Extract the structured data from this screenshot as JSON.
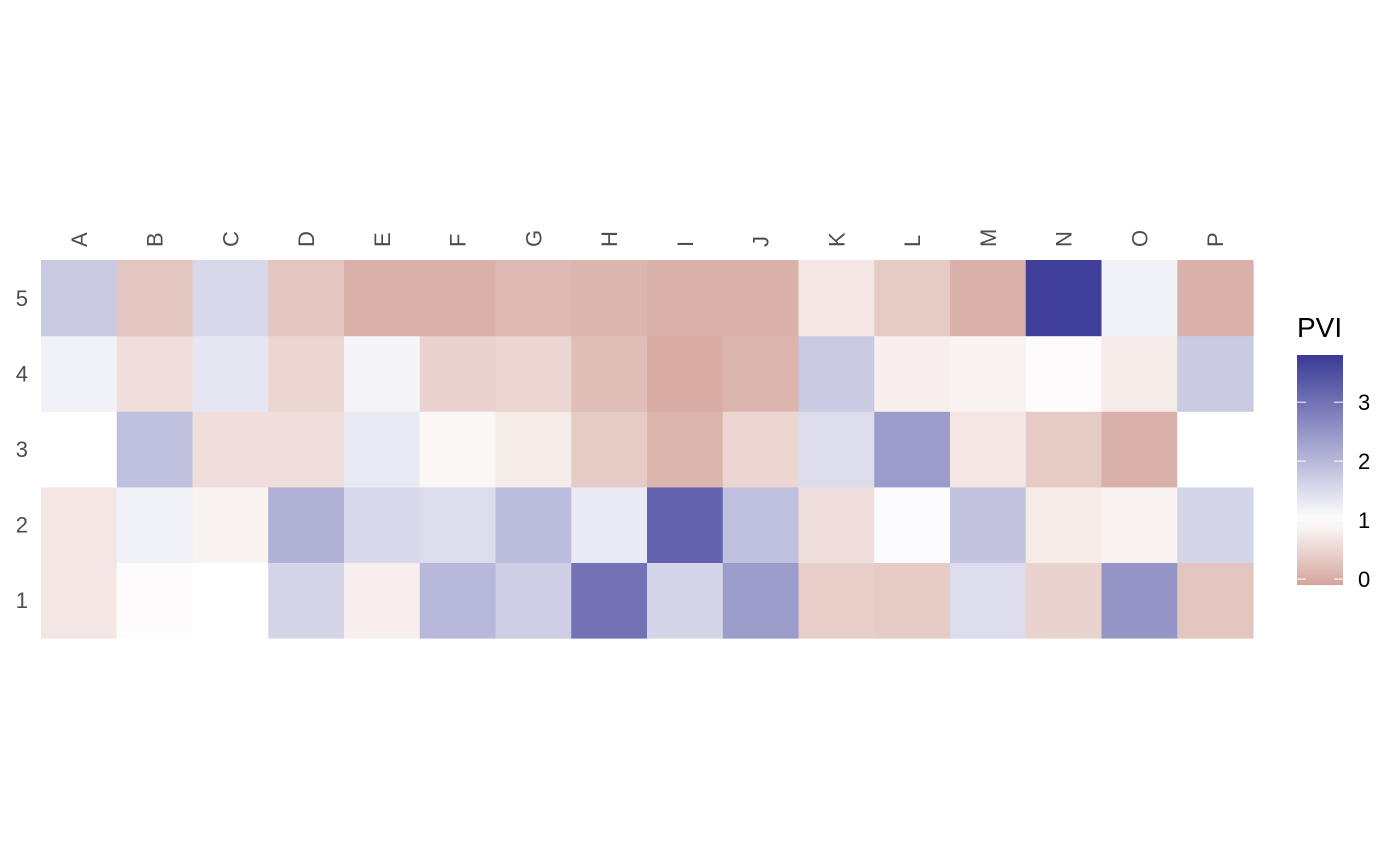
{
  "chart_data": {
    "type": "heatmap",
    "x_categories": [
      "A",
      "B",
      "C",
      "D",
      "E",
      "F",
      "G",
      "H",
      "I",
      "J",
      "K",
      "L",
      "M",
      "N",
      "O",
      "P"
    ],
    "y_categories": [
      "1",
      "2",
      "3",
      "4",
      "5"
    ],
    "values": [
      [
        0.7,
        0.95,
        1.0,
        1.6,
        0.8,
        2.0,
        1.7,
        3.0,
        1.6,
        2.4,
        0.4,
        0.35,
        1.5,
        0.45,
        2.5,
        0.3
      ],
      [
        0.7,
        1.2,
        0.85,
        2.1,
        1.55,
        1.5,
        1.95,
        1.3,
        3.2,
        1.9,
        0.6,
        1.05,
        1.85,
        0.75,
        0.85,
        1.6
      ],
      [
        1.0,
        1.9,
        0.6,
        0.6,
        1.3,
        0.9,
        0.75,
        0.35,
        0.1,
        0.5,
        1.5,
        2.4,
        0.7,
        0.35,
        0.05,
        1.0
      ],
      [
        1.2,
        0.6,
        1.35,
        0.5,
        1.15,
        0.45,
        0.5,
        0.2,
        0.0,
        0.1,
        1.75,
        0.8,
        0.85,
        0.95,
        0.75,
        1.75
      ],
      [
        1.75,
        0.3,
        1.55,
        0.3,
        0.05,
        0.05,
        0.15,
        0.1,
        0.05,
        0.05,
        0.7,
        0.35,
        0.05,
        3.7,
        1.2,
        0.05
      ]
    ],
    "legend": {
      "title": "PVI",
      "ticks": [
        0,
        1,
        2,
        3
      ],
      "tick_labels": [
        "0",
        "1",
        "2",
        "3"
      ],
      "range": [
        -0.1,
        3.8
      ],
      "position": "right"
    },
    "colors": {
      "low": "#d4a59c",
      "mid": "#ffffff",
      "high": "#393997",
      "midpoint": 1
    },
    "x_axis_position": "top",
    "grid": false
  }
}
